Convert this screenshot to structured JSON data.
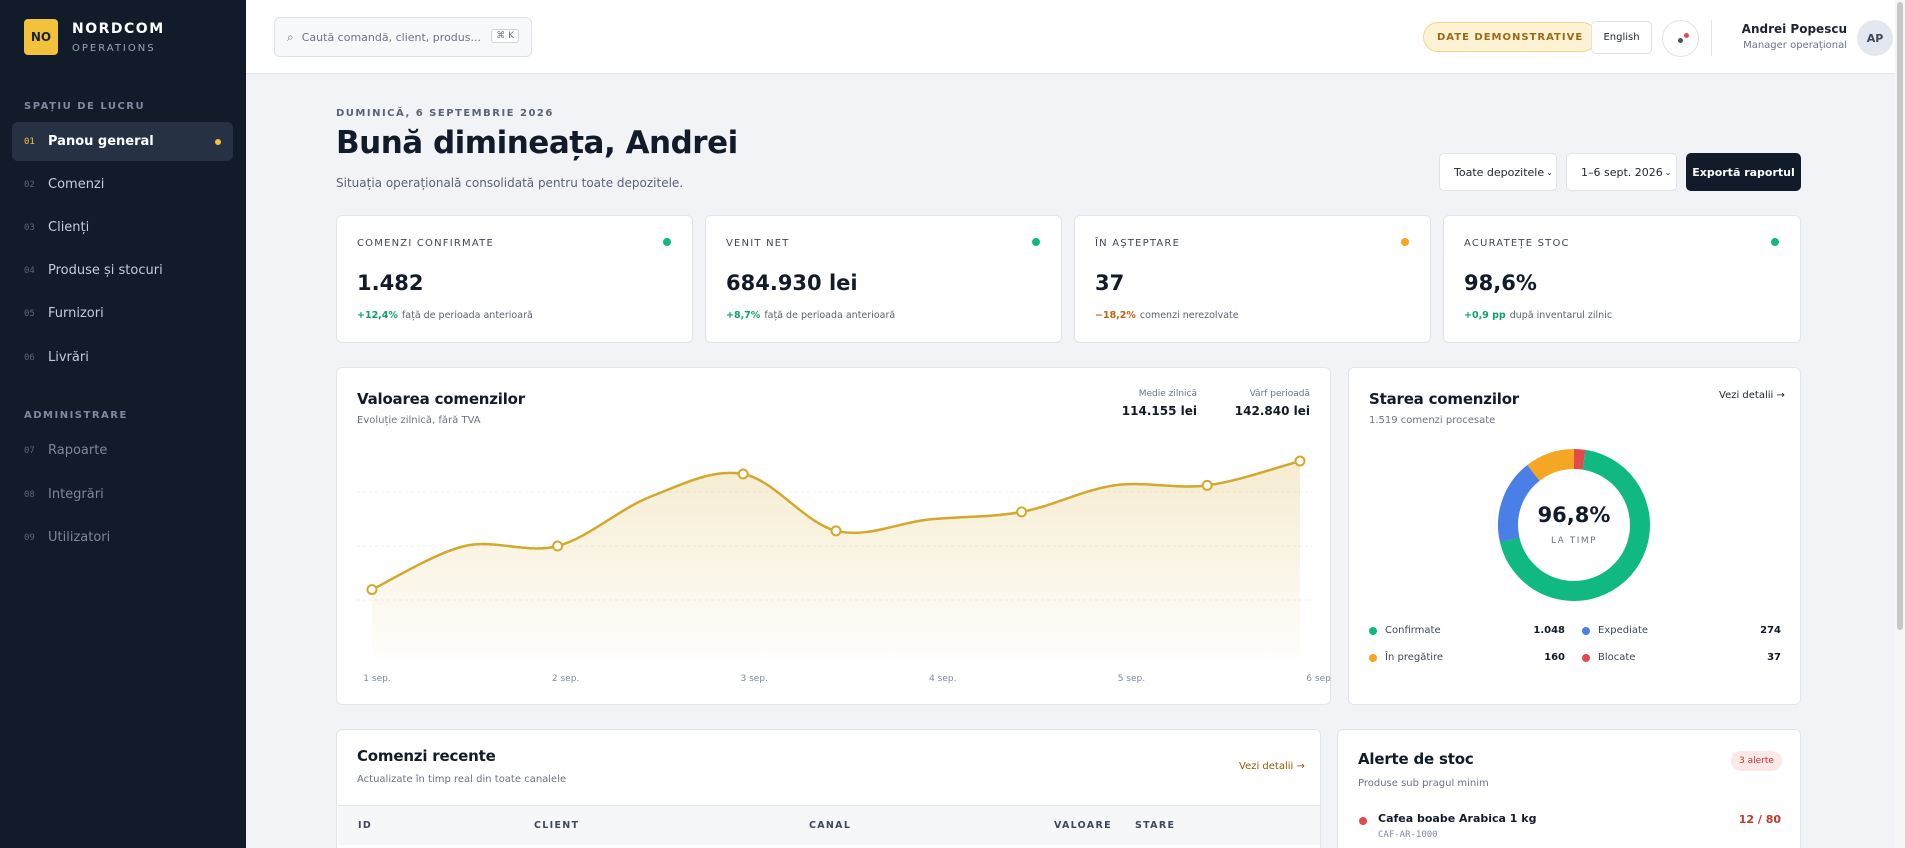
{
  "brand": {
    "logo": "NO",
    "name": "NORDCOM",
    "sub": "OPERATIONS"
  },
  "sidebar": {
    "section_workspace": "SPAȚIU DE LUCRU",
    "section_admin": "ADMINISTRARE",
    "items": [
      {
        "num": "01",
        "label": "Panou general"
      },
      {
        "num": "02",
        "label": "Comenzi"
      },
      {
        "num": "03",
        "label": "Clienți"
      },
      {
        "num": "04",
        "label": "Produse și stocuri"
      },
      {
        "num": "05",
        "label": "Furnizori"
      },
      {
        "num": "06",
        "label": "Livrări"
      }
    ],
    "admin_items": [
      {
        "num": "07",
        "label": "Rapoarte"
      },
      {
        "num": "08",
        "label": "Integrări"
      },
      {
        "num": "09",
        "label": "Utilizatori"
      }
    ]
  },
  "topbar": {
    "search_placeholder": "Caută comandă, client, produs...",
    "search_kbd": "⌘ K",
    "demo_badge": "DATE DEMONSTRATIVE",
    "language": "English",
    "user_name": "Andrei Popescu",
    "user_role": "Manager operațional",
    "avatar": "AP"
  },
  "header": {
    "date": "DUMINICĂ, 6 SEPTEMBRIE 2026",
    "title": "Bună dimineața, Andrei",
    "subtitle": "Situația operațională consolidată pentru toate depozitele.",
    "filter_warehouse": "Toate depozitele",
    "filter_period": "1–6 sept. 2026",
    "export_label": "Exportă raportul"
  },
  "kpis": [
    {
      "label": "COMENZI CONFIRMATE",
      "value": "1.482",
      "delta": "+12,4%",
      "note": "față de perioada anterioară",
      "color": "#10b981"
    },
    {
      "label": "VENIT NET",
      "value": "684.930 lei",
      "delta": "+8,7%",
      "note": "față de perioada anterioară",
      "color": "#10b981"
    },
    {
      "label": "ÎN AȘTEPTARE",
      "value": "37",
      "delta": "−18,2%",
      "note": "comenzi nerezolvate",
      "color": "#f5a623"
    },
    {
      "label": "ACURATEȚE STOC",
      "value": "98,6%",
      "delta": "+0,9 pp",
      "note": "după inventarul zilnic",
      "color": "#10b981"
    }
  ],
  "order_value": {
    "title": "Valoarea comenzilor",
    "subtitle": "Evoluție zilnică, fără TVA",
    "avg_label": "Medie zilnică",
    "avg_value": "114.155 lei",
    "peak_label": "Vârf perioadă",
    "peak_value": "142.840 lei"
  },
  "chart_data": {
    "type": "area",
    "title": "Valoarea comenzilor",
    "subtitle": "Evoluție zilnică, fără TVA",
    "x": [
      "1 sep.",
      "",
      "2 sep.",
      "",
      "3 sep.",
      "",
      "4 sep.",
      "",
      "5 sep.",
      "",
      "6 sep."
    ],
    "tick_labels": [
      "1 sep.",
      "2 sep.",
      "3 sep.",
      "4 sep.",
      "5 sep.",
      "6 sep."
    ],
    "series": [
      {
        "values": [
          75000,
          98000,
          98000,
          124000,
          136000,
          106000,
          112000,
          116000,
          130000,
          130000,
          142840
        ],
        "color": "#d4a82c"
      }
    ],
    "markers": [
      0,
      2,
      4,
      5,
      7,
      9,
      10
    ],
    "ylim": [
      60000,
      155000
    ],
    "grid": true,
    "color": "#d4a82c"
  },
  "order_status": {
    "title": "Starea comenzilor",
    "subtitle": "1.519 comenzi procesate",
    "link": "Vezi detalii →",
    "center_value": "96,8%",
    "center_label": "LA TIMP",
    "segments": [
      {
        "name": "Confirmate",
        "value": 1048,
        "display": "1.048",
        "color": "#10b981"
      },
      {
        "name": "Expediate",
        "value": 274,
        "display": "274",
        "color": "#4a7fe8"
      },
      {
        "name": "În pregătire",
        "value": 160,
        "display": "160",
        "color": "#f5a623"
      },
      {
        "name": "Blocate",
        "value": 37,
        "display": "37",
        "color": "#e14b4b"
      }
    ]
  },
  "recent_orders": {
    "title": "Comenzi recente",
    "subtitle": "Actualizate în timp real din toate canalele",
    "link": "Vezi detalii →",
    "columns": [
      "ID",
      "CLIENT",
      "CANAL",
      "VALOARE",
      "STARE"
    ]
  },
  "stock_alerts": {
    "title": "Alerte de stoc",
    "subtitle": "Produse sub pragul minim",
    "badge": "3 alerte",
    "items": [
      {
        "name": "Cafea boabe Arabica 1 kg",
        "sku": "CAF-AR-1000",
        "qty": "12 / 80"
      }
    ]
  }
}
